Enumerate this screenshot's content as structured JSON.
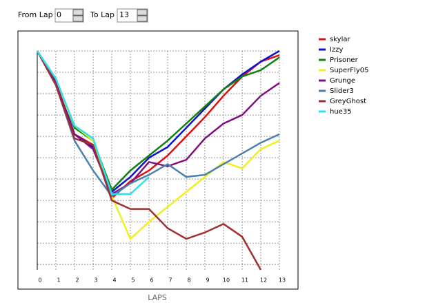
{
  "controls": {
    "from_label": "From Lap",
    "from_value": "0",
    "to_label": "To Lap",
    "to_value": "13"
  },
  "chart_data": {
    "type": "line",
    "xlabel": "LAPS",
    "x": [
      0,
      1,
      2,
      3,
      4,
      5,
      6,
      7,
      8,
      9,
      10,
      11,
      12,
      13
    ],
    "xlim": [
      0,
      13
    ],
    "xticks": [
      0,
      1,
      2,
      3,
      4,
      5,
      6,
      7,
      8,
      9,
      10,
      11,
      12,
      13
    ],
    "ylim": [
      0,
      10.25
    ],
    "yticks": [
      0,
      1,
      2,
      3,
      4,
      5,
      6,
      7,
      8,
      9,
      10
    ],
    "y_inverted": true,
    "grid": true,
    "series": [
      {
        "name": "skylar",
        "color": "#e01010",
        "values": [
          0,
          1.5,
          3.9,
          4.4,
          6.9,
          6.1,
          5.6,
          4.9,
          4.0,
          3.1,
          2.1,
          1.2,
          0.5,
          0.2
        ]
      },
      {
        "name": "Izzy",
        "color": "#1010d0",
        "values": [
          0,
          1.4,
          3.9,
          4.5,
          6.6,
          5.9,
          5.0,
          4.5,
          3.6,
          2.7,
          1.8,
          1.1,
          0.5,
          0
        ]
      },
      {
        "name": "Prisoner",
        "color": "#108010",
        "values": [
          0,
          1.3,
          3.6,
          4.2,
          6.5,
          5.6,
          4.9,
          4.2,
          3.4,
          2.6,
          1.8,
          1.2,
          0.9,
          0.3
        ]
      },
      {
        "name": "SuperFly05",
        "color": "#f0f020",
        "values": [
          0,
          1.5,
          3.5,
          4.2,
          6.8,
          8.8,
          8.0,
          7.3,
          6.6,
          5.9,
          5.2,
          5.5,
          4.6,
          4.2
        ]
      },
      {
        "name": "Grunge",
        "color": "#801080",
        "values": [
          0,
          1.5,
          3.9,
          4.6,
          6.7,
          6.2,
          5.2,
          5.4,
          5.1,
          4.1,
          3.4,
          3.0,
          2.1,
          1.5
        ]
      },
      {
        "name": "Slider3",
        "color": "#4a80b0",
        "values": [
          0,
          1.6,
          4.2,
          5.6,
          6.8,
          6.2,
          5.8,
          5.3,
          5.9,
          5.8,
          5.3,
          4.8,
          4.3,
          3.9
        ]
      },
      {
        "name": "GreyGhost",
        "color": "#a03030",
        "values": [
          0,
          1.6,
          4.1,
          4.4,
          7.0,
          7.4,
          7.4,
          8.3,
          8.8,
          8.5,
          8.1,
          8.7,
          10.25,
          null
        ]
      },
      {
        "name": "hue35",
        "color": "#30e0f0",
        "values": [
          0,
          1.3,
          3.5,
          4.1,
          6.7,
          6.7,
          5.9,
          null,
          null,
          null,
          null,
          null,
          null,
          null
        ]
      }
    ]
  }
}
